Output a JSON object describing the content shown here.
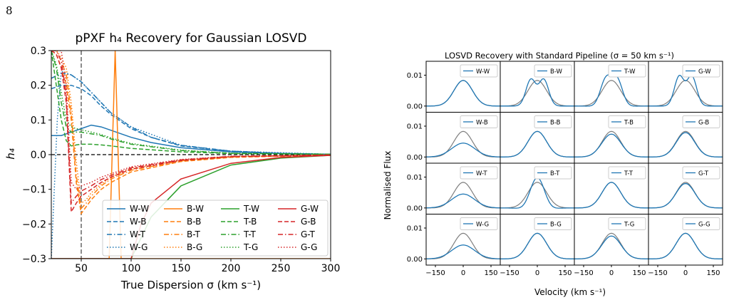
{
  "page_number": "8",
  "chart_data": [
    {
      "type": "line",
      "title": "pPXF h₄ Recovery for Gaussian LOSVD",
      "xlabel": "True Dispersion σ (km s⁻¹)",
      "ylabel": "h₄",
      "xlim": [
        20,
        300
      ],
      "ylim": [
        -0.3,
        0.3
      ],
      "xticks": [
        50,
        100,
        150,
        200,
        250,
        300
      ],
      "yticks": [
        -0.3,
        -0.2,
        -0.1,
        0.0,
        0.1,
        0.2,
        0.3
      ],
      "xtick_labels": [
        "50",
        "100",
        "150",
        "200",
        "250",
        "300"
      ],
      "ytick_labels": [
        "−0.3",
        "−0.2",
        "−0.1",
        "0.0",
        "0.1",
        "0.2",
        "0.3"
      ],
      "vline_x": 50,
      "hline_y": 0,
      "legend_position": "bottom-right",
      "colors": {
        "W": "#1f77b4",
        "B": "#ff7f0e",
        "T": "#2ca02c",
        "G": "#d62728"
      },
      "series": [
        {
          "name": "W-W",
          "color": "#1f77b4",
          "style": "solid",
          "x": [
            20,
            30,
            40,
            50,
            60,
            70,
            80,
            100,
            120,
            150,
            200,
            250,
            300
          ],
          "y": [
            0.055,
            0.055,
            0.065,
            0.075,
            0.085,
            0.08,
            0.07,
            0.05,
            0.035,
            0.02,
            0.008,
            0.003,
            0.001
          ]
        },
        {
          "name": "W-B",
          "color": "#1f77b4",
          "style": "dashed",
          "x": [
            20,
            30,
            40,
            50,
            60,
            70,
            80,
            100,
            120,
            150,
            200,
            250,
            300
          ],
          "y": [
            0.19,
            0.2,
            0.2,
            0.19,
            0.17,
            0.14,
            0.115,
            0.075,
            0.05,
            0.025,
            0.01,
            0.004,
            0.001
          ]
        },
        {
          "name": "W-T",
          "color": "#1f77b4",
          "style": "dashdot",
          "x": [
            20,
            30,
            40,
            50,
            60,
            70,
            80,
            100,
            120,
            150,
            200,
            250,
            300
          ],
          "y": [
            0.22,
            0.235,
            0.23,
            0.21,
            0.18,
            0.15,
            0.12,
            0.08,
            0.05,
            0.027,
            0.01,
            0.004,
            0.001
          ]
        },
        {
          "name": "W-G",
          "color": "#1f77b4",
          "style": "dotted",
          "x": [
            20,
            23,
            26,
            30,
            40,
            50,
            60,
            80,
            100,
            150,
            200,
            300
          ],
          "y": [
            -0.3,
            -0.1,
            0.1,
            0.24,
            0.23,
            0.21,
            0.18,
            0.12,
            0.08,
            0.027,
            0.01,
            0.001
          ]
        },
        {
          "name": "B-W",
          "color": "#ff7f0e",
          "style": "solid",
          "x": [
            20,
            40,
            50,
            60,
            70,
            78,
            84,
            90,
            100,
            120,
            150,
            200,
            250,
            300
          ],
          "y": [
            -0.3,
            -0.3,
            -0.3,
            -0.3,
            -0.3,
            -0.3,
            0.3,
            -0.3,
            -0.3,
            -0.3,
            -0.3,
            -0.3,
            -0.3,
            -0.3
          ]
        },
        {
          "name": "B-B",
          "color": "#ff7f0e",
          "style": "dashed",
          "x": [
            20,
            25,
            30,
            35,
            40,
            45,
            50,
            55,
            60,
            70,
            80,
            100,
            150,
            200,
            300
          ],
          "y": [
            0.3,
            0.29,
            0.25,
            0.2,
            0.1,
            -0.08,
            -0.17,
            -0.15,
            -0.13,
            -0.1,
            -0.08,
            -0.05,
            -0.02,
            -0.008,
            -0.001
          ]
        },
        {
          "name": "B-T",
          "color": "#ff7f0e",
          "style": "dashdot",
          "x": [
            20,
            25,
            30,
            35,
            40,
            45,
            50,
            55,
            60,
            70,
            80,
            100,
            150,
            200,
            300
          ],
          "y": [
            0.3,
            0.3,
            0.27,
            0.23,
            0.12,
            -0.06,
            -0.155,
            -0.14,
            -0.12,
            -0.09,
            -0.07,
            -0.045,
            -0.018,
            -0.007,
            -0.001
          ]
        },
        {
          "name": "B-G",
          "color": "#ff7f0e",
          "style": "dotted",
          "x": [
            20,
            25,
            30,
            35,
            40,
            45,
            50,
            55,
            60,
            70,
            80,
            100,
            150,
            200,
            300
          ],
          "y": [
            0.3,
            0.3,
            0.28,
            0.25,
            0.15,
            -0.02,
            -0.14,
            -0.13,
            -0.11,
            -0.085,
            -0.065,
            -0.04,
            -0.016,
            -0.006,
            -0.001
          ]
        },
        {
          "name": "T-W",
          "color": "#2ca02c",
          "style": "solid",
          "x": [
            20,
            50,
            60,
            70,
            80,
            90,
            100,
            120,
            150,
            200,
            250,
            300
          ],
          "y": [
            -0.3,
            -0.3,
            -0.3,
            -0.3,
            -0.3,
            -0.3,
            -0.3,
            -0.18,
            -0.09,
            -0.03,
            -0.01,
            -0.002
          ]
        },
        {
          "name": "T-B",
          "color": "#2ca02c",
          "style": "dashed",
          "x": [
            20,
            25,
            30,
            35,
            40,
            45,
            50,
            60,
            70,
            80,
            100,
            150,
            200,
            300
          ],
          "y": [
            0.3,
            0.2,
            0.1,
            0.04,
            0.025,
            0.028,
            0.03,
            0.03,
            0.028,
            0.025,
            0.018,
            0.008,
            0.003,
            0.001
          ]
        },
        {
          "name": "T-T",
          "color": "#2ca02c",
          "style": "dashdot",
          "x": [
            20,
            25,
            30,
            35,
            40,
            45,
            50,
            60,
            70,
            80,
            100,
            150,
            200,
            300
          ],
          "y": [
            0.3,
            0.25,
            0.15,
            0.08,
            0.065,
            0.065,
            0.065,
            0.06,
            0.055,
            0.045,
            0.03,
            0.012,
            0.004,
            0.001
          ]
        },
        {
          "name": "T-G",
          "color": "#2ca02c",
          "style": "dotted",
          "x": [
            20,
            25,
            30,
            35,
            40,
            45,
            50,
            60,
            70,
            80,
            100,
            150,
            200,
            300
          ],
          "y": [
            0.3,
            0.26,
            0.18,
            0.1,
            0.08,
            0.075,
            0.072,
            0.065,
            0.058,
            0.048,
            0.032,
            0.013,
            0.004,
            0.001
          ]
        },
        {
          "name": "G-W",
          "color": "#d62728",
          "style": "solid",
          "x": [
            20,
            50,
            60,
            70,
            80,
            90,
            100,
            110,
            120,
            150,
            200,
            250,
            300
          ],
          "y": [
            -0.3,
            -0.3,
            -0.3,
            -0.3,
            -0.3,
            -0.3,
            -0.3,
            -0.2,
            -0.14,
            -0.07,
            -0.025,
            -0.008,
            -0.002
          ]
        },
        {
          "name": "G-B",
          "color": "#d62728",
          "style": "dashed",
          "x": [
            20,
            25,
            30,
            35,
            40,
            45,
            50,
            60,
            70,
            80,
            100,
            150,
            200,
            300
          ],
          "y": [
            0.3,
            0.29,
            0.25,
            0.15,
            -0.165,
            -0.14,
            -0.12,
            -0.1,
            -0.08,
            -0.065,
            -0.042,
            -0.017,
            -0.006,
            -0.001
          ]
        },
        {
          "name": "G-T",
          "color": "#d62728",
          "style": "dashdot",
          "x": [
            20,
            25,
            30,
            35,
            40,
            45,
            50,
            60,
            70,
            80,
            100,
            150,
            200,
            300
          ],
          "y": [
            0.3,
            0.3,
            0.27,
            0.17,
            -0.14,
            -0.12,
            -0.105,
            -0.09,
            -0.072,
            -0.06,
            -0.038,
            -0.015,
            -0.005,
            -0.001
          ]
        },
        {
          "name": "G-G",
          "color": "#d62728",
          "style": "dotted",
          "x": [
            20,
            25,
            30,
            35,
            40,
            45,
            50,
            60,
            70,
            80,
            100,
            150,
            200,
            300
          ],
          "y": [
            0.3,
            0.3,
            0.3,
            0.2,
            -0.08,
            -0.1,
            -0.09,
            -0.08,
            -0.065,
            -0.055,
            -0.035,
            -0.014,
            -0.005,
            -0.001
          ]
        }
      ]
    },
    {
      "type": "line",
      "title": "LOSVD Recovery with Standard Pipeline (σ = 50 km s⁻¹)",
      "xlabel": "Velocity (km s⁻¹)",
      "ylabel": "Normalised Flux",
      "xlim": [
        -200,
        200
      ],
      "ylim": [
        -0.002,
        0.0145
      ],
      "xticks": [
        -150,
        0,
        150
      ],
      "yticks": [
        0.0,
        0.01
      ],
      "xtick_labels": [
        "−150",
        "0",
        "150"
      ],
      "ytick_labels": [
        "0.00",
        "0.01"
      ],
      "grid_shape": [
        4,
        4
      ],
      "true_color": "#7f7f7f",
      "recovered_color": "#1f77b4",
      "legend_position": "top-right",
      "panels": [
        {
          "label": "W-W",
          "a1": 0.0083,
          "s1": 50,
          "a2": 0,
          "m": 0,
          "s2": 30,
          "bb": 0,
          "sb": 1,
          "true": 0.0083
        },
        {
          "label": "B-W",
          "a1": 0,
          "s1": 50,
          "a2": 0.0098,
          "m": 33,
          "s2": 27,
          "bb": 0.0022,
          "sb": 36,
          "true": 0.0083
        },
        {
          "label": "T-W",
          "a1": 0,
          "s1": 50,
          "a2": 0.0092,
          "m": 30,
          "s2": 30,
          "bb": 0.001,
          "sb": 55,
          "true": 0.0083
        },
        {
          "label": "G-W",
          "a1": 0,
          "s1": 50,
          "a2": 0.0096,
          "m": 34,
          "s2": 26,
          "bb": 0,
          "sb": 1,
          "true": 0.0083
        },
        {
          "label": "W-B",
          "a1": 0.0045,
          "s1": 62,
          "a2": 0,
          "m": 0,
          "s2": 30,
          "bb": 0,
          "sb": 1,
          "true": 0.0083
        },
        {
          "label": "B-B",
          "a1": 0.0083,
          "s1": 50,
          "a2": 0,
          "m": 0,
          "s2": 30,
          "bb": 0,
          "sb": 1,
          "true": 0.0083
        },
        {
          "label": "T-B",
          "a1": 0.0074,
          "s1": 52,
          "a2": 0,
          "m": 0,
          "s2": 30,
          "bb": 0,
          "sb": 1,
          "true": 0.0083
        },
        {
          "label": "G-B",
          "a1": 0.0079,
          "s1": 50,
          "a2": 0,
          "m": 0,
          "s2": 30,
          "bb": 0,
          "sb": 1,
          "true": 0.0083
        },
        {
          "label": "W-T",
          "a1": 0.0045,
          "s1": 62,
          "a2": 0,
          "m": 0,
          "s2": 30,
          "bb": 0,
          "sb": 1,
          "true": 0.0083
        },
        {
          "label": "B-T",
          "a1": 0,
          "s1": 50,
          "a2": 0.0062,
          "m": 18,
          "s2": 32,
          "bb": 0.0008,
          "sb": 60,
          "true": 0.0083
        },
        {
          "label": "T-T",
          "a1": 0.0083,
          "s1": 50,
          "a2": 0,
          "m": 0,
          "s2": 30,
          "bb": 0,
          "sb": 1,
          "true": 0.0083
        },
        {
          "label": "G-T",
          "a1": 0.0079,
          "s1": 51,
          "a2": 0,
          "m": 0,
          "s2": 30,
          "bb": 0,
          "sb": 1,
          "true": 0.0083
        },
        {
          "label": "W-G",
          "a1": 0.0045,
          "s1": 62,
          "a2": 0,
          "m": 0,
          "s2": 30,
          "bb": 0,
          "sb": 1,
          "true": 0.0083
        },
        {
          "label": "B-G",
          "a1": 0.0083,
          "s1": 50,
          "a2": 0,
          "m": 0,
          "s2": 30,
          "bb": 0,
          "sb": 1,
          "true": 0.0083
        },
        {
          "label": "T-G",
          "a1": 0.0074,
          "s1": 52,
          "a2": 0,
          "m": 0,
          "s2": 30,
          "bb": 0,
          "sb": 1,
          "true": 0.0083
        },
        {
          "label": "G-G",
          "a1": 0.0083,
          "s1": 50,
          "a2": 0,
          "m": 0,
          "s2": 30,
          "bb": 0,
          "sb": 1,
          "true": 0.0083
        }
      ]
    }
  ]
}
